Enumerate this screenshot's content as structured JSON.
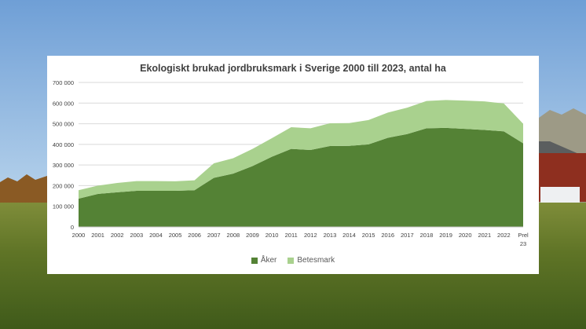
{
  "chart_data": {
    "type": "area",
    "stacked": true,
    "title": "Ekologiskt brukad jordbruksmark i Sverige 2000 till 2023, antal ha",
    "categories": [
      "2000",
      "2001",
      "2002",
      "2003",
      "2004",
      "2005",
      "2006",
      "2007",
      "2008",
      "2009",
      "2010",
      "2011",
      "2012",
      "2013",
      "2014",
      "2015",
      "2016",
      "2017",
      "2018",
      "2019",
      "2020",
      "2021",
      "2022",
      "Prel 23"
    ],
    "series": [
      {
        "name": "Åker",
        "color": "#548235",
        "values": [
          137000,
          160000,
          168000,
          175000,
          175000,
          175000,
          178000,
          238000,
          258000,
          295000,
          340000,
          378000,
          373000,
          392000,
          393000,
          400000,
          432000,
          450000,
          478000,
          480000,
          475000,
          470000,
          463000,
          405000
        ]
      },
      {
        "name": "Betesmark",
        "color": "#a9d18e",
        "values": [
          41000,
          40000,
          45000,
          47000,
          47000,
          46000,
          48000,
          70000,
          75000,
          83000,
          90000,
          105000,
          105000,
          110000,
          110000,
          118000,
          122000,
          128000,
          132000,
          135000,
          137000,
          138000,
          135000,
          95000
        ]
      }
    ],
    "y_ticks": [
      "0",
      "100 000",
      "200 000",
      "300 000",
      "400 000",
      "500 000",
      "600 000",
      "700 000"
    ],
    "ylim": [
      0,
      700000
    ],
    "grid": true,
    "legend_position": "bottom"
  }
}
